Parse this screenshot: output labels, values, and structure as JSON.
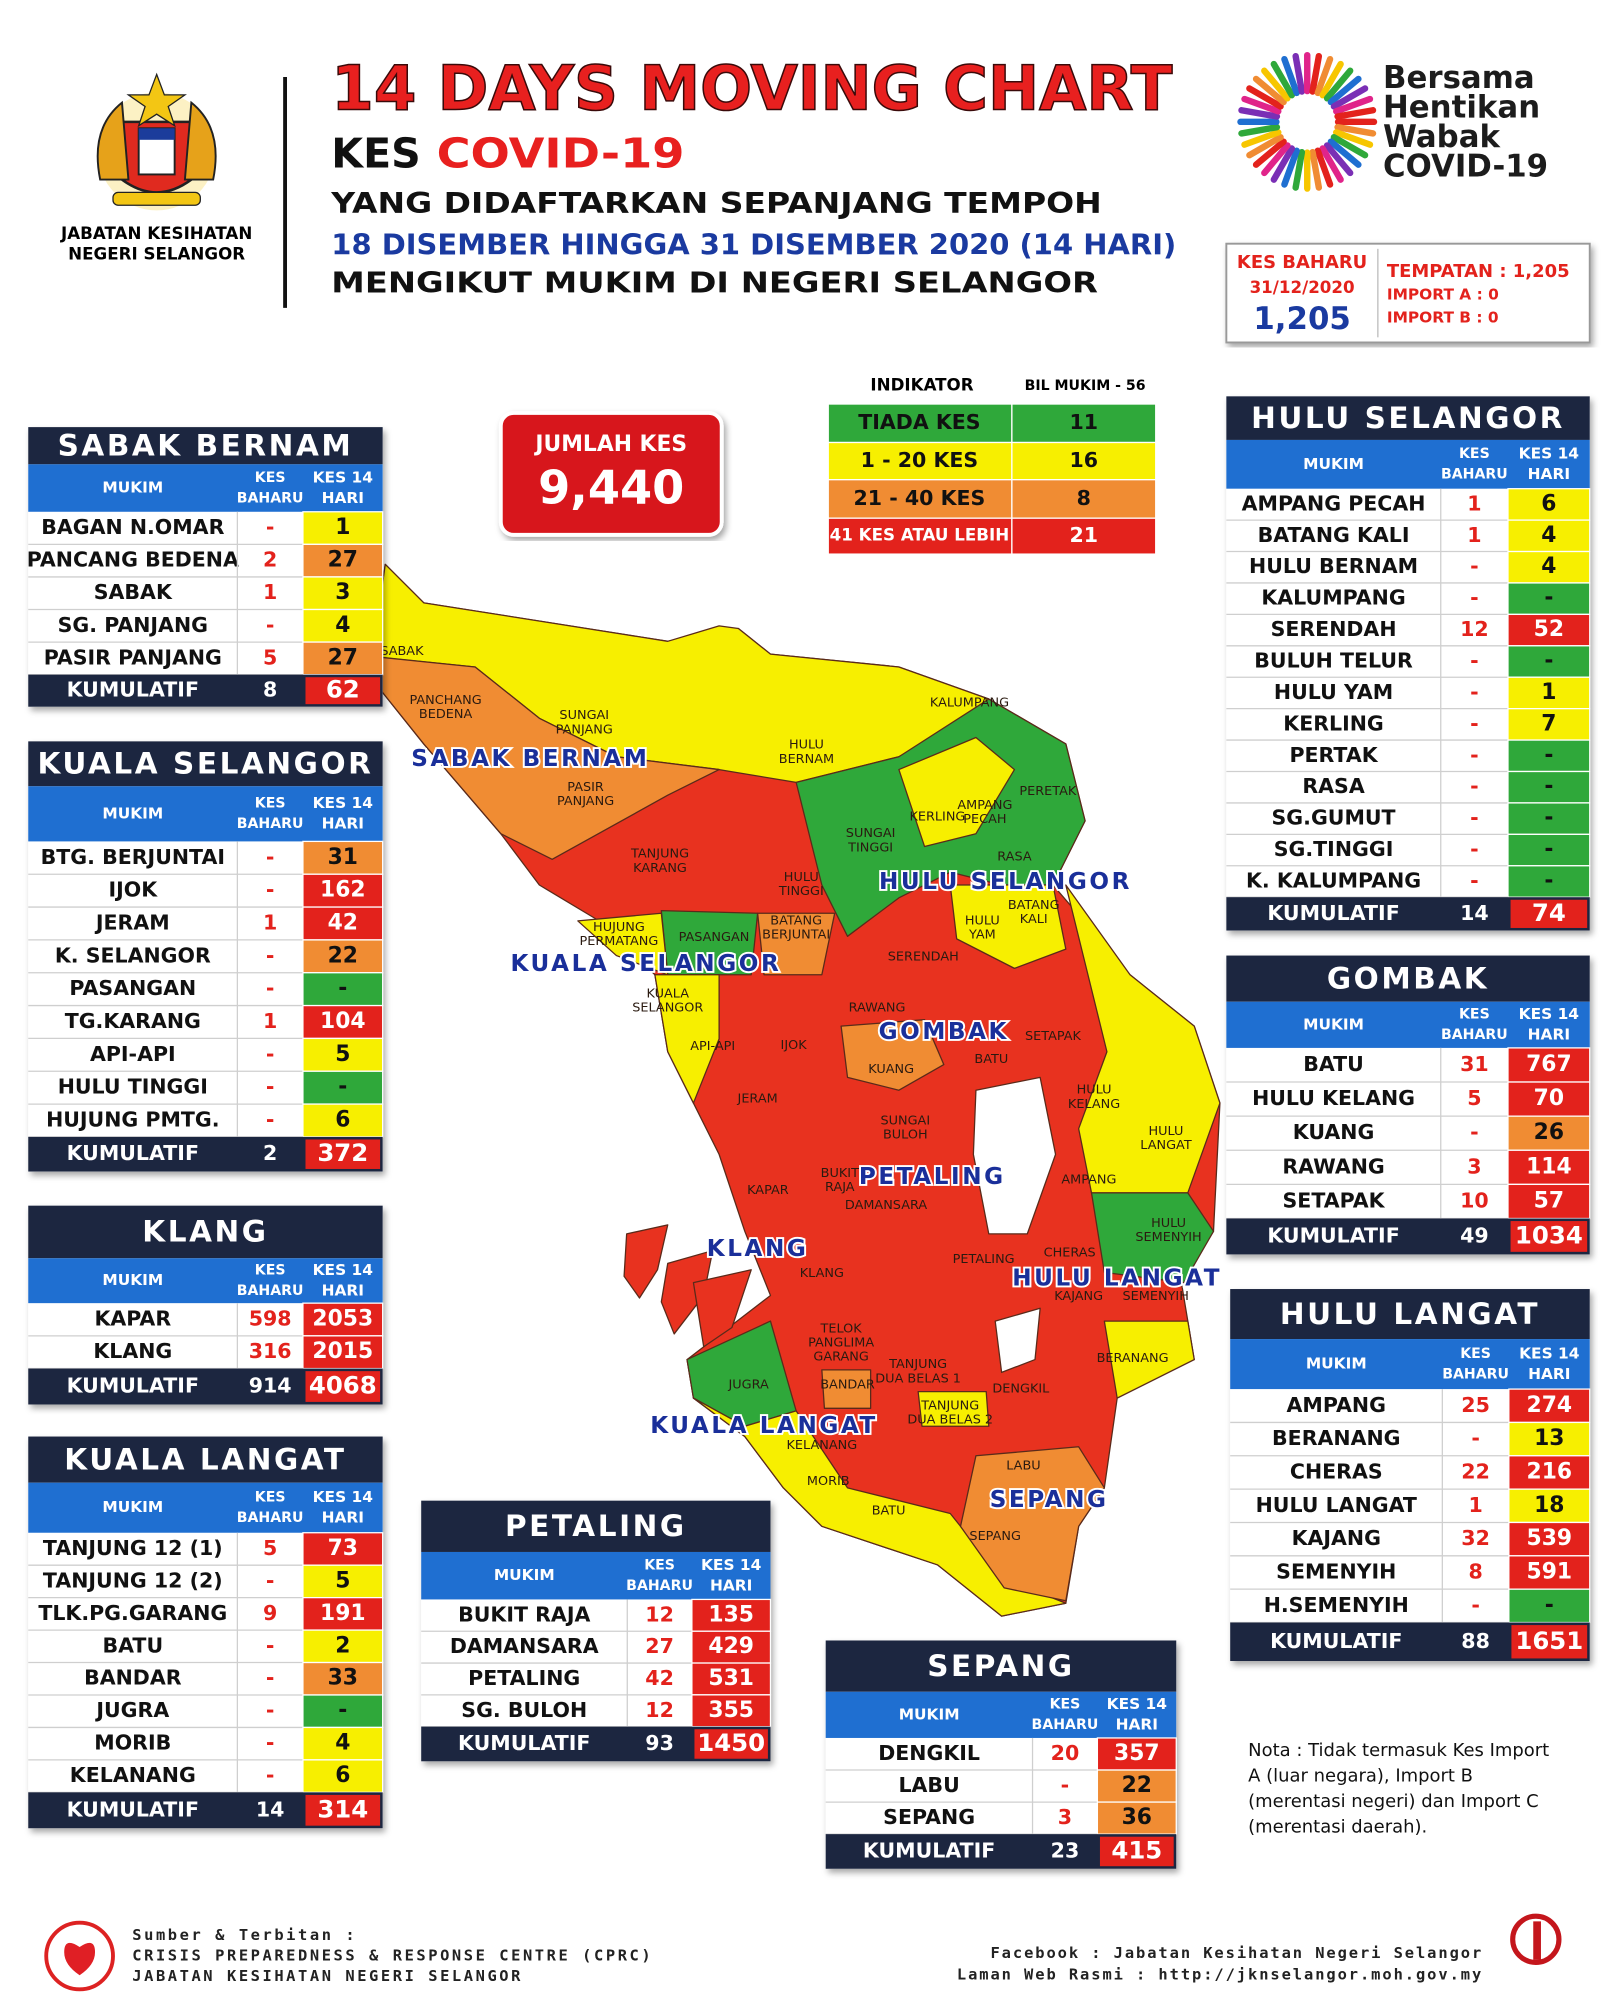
{
  "header": {
    "org": [
      "JABATAN KESIHATAN",
      "NEGERI SELANGOR"
    ],
    "title": "14 DAYS MOVING CHART",
    "subtitle_kes": "KES",
    "subtitle_covid": "COVID-19",
    "line1": "YANG DIDAFTARKAN SEPANJANG TEMPOH",
    "line2": "18 DISEMBER HINGGA 31 DISEMBER 2020 (14 HARI)",
    "line3": "MENGIKUT MUKIM DI NEGERI SELANGOR"
  },
  "campaign": [
    "Bersama",
    "Hentikan",
    "Wabak",
    "COVID-19"
  ],
  "new_cases": {
    "label": "KES BAHARU",
    "date": "31/12/2020",
    "total": "1,205",
    "breakdown": [
      "TEMPATAN : 1,205",
      "IMPORT A : 0",
      "IMPORT B : 0"
    ]
  },
  "total_cases": {
    "label": "JUMLAH KES",
    "value": "9,440"
  },
  "indicator": {
    "title": "INDIKATOR",
    "count_title": "BIL MUKIM - 56",
    "rows": [
      {
        "label": "TIADA KES",
        "count": "11",
        "color": "#2fa83a"
      },
      {
        "label": "1 - 20 KES",
        "count": "16",
        "color": "#f7ef00"
      },
      {
        "label": "21 - 40 KES",
        "count": "8",
        "color": "#f08c33"
      },
      {
        "label": "41 KES ATAU LEBIH",
        "count": "21",
        "color": "#e3221c"
      }
    ]
  },
  "tables": [
    {
      "title": "SABAK BERNAM",
      "headers": {
        "mukim": "MUKIM",
        "baharu": [
          "KES",
          "BAHARU"
        ],
        "hari": [
          "KES 14",
          "HARI"
        ]
      },
      "rows": [
        {
          "mukim": "BAGAN N.OMAR",
          "baharu": "-",
          "hari": "1",
          "color": "#f7ef00"
        },
        {
          "mukim": "PANCANG BEDENA",
          "baharu": "2",
          "hari": "27",
          "color": "#f08c33"
        },
        {
          "mukim": "SABAK",
          "baharu": "1",
          "hari": "3",
          "color": "#f7ef00"
        },
        {
          "mukim": "SG. PANJANG",
          "baharu": "-",
          "hari": "4",
          "color": "#f7ef00"
        },
        {
          "mukim": "PASIR PANJANG",
          "baharu": "5",
          "hari": "27",
          "color": "#f08c33"
        }
      ],
      "total": {
        "label": "KUMULATIF",
        "baharu": "8",
        "hari": "62"
      }
    },
    {
      "title": "KUALA SELANGOR",
      "headers": {
        "mukim": "MUKIM",
        "baharu": [
          "KES",
          "BAHARU"
        ],
        "hari": [
          "KES 14",
          "HARI"
        ]
      },
      "rows": [
        {
          "mukim": "BTG. BERJUNTAI",
          "baharu": "-",
          "hari": "31",
          "color": "#f08c33"
        },
        {
          "mukim": "IJOK",
          "baharu": "-",
          "hari": "162",
          "color": "#e3221c"
        },
        {
          "mukim": "JERAM",
          "baharu": "1",
          "hari": "42",
          "color": "#e3221c"
        },
        {
          "mukim": "K. SELANGOR",
          "baharu": "-",
          "hari": "22",
          "color": "#f08c33"
        },
        {
          "mukim": "PASANGAN",
          "baharu": "-",
          "hari": "-",
          "color": "#2fa83a"
        },
        {
          "mukim": "TG.KARANG",
          "baharu": "1",
          "hari": "104",
          "color": "#e3221c"
        },
        {
          "mukim": "API-API",
          "baharu": "-",
          "hari": "5",
          "color": "#f7ef00"
        },
        {
          "mukim": "HULU TINGGI",
          "baharu": "-",
          "hari": "-",
          "color": "#2fa83a"
        },
        {
          "mukim": "HUJUNG PMTG.",
          "baharu": "-",
          "hari": "6",
          "color": "#f7ef00"
        }
      ],
      "total": {
        "label": "KUMULATIF",
        "baharu": "2",
        "hari": "372"
      }
    },
    {
      "title": "KLANG",
      "headers": {
        "mukim": "MUKIM",
        "baharu": [
          "KES",
          "BAHARU"
        ],
        "hari": [
          "KES 14",
          "HARI"
        ]
      },
      "rows": [
        {
          "mukim": "KAPAR",
          "baharu": "598",
          "hari": "2053",
          "color": "#e3221c"
        },
        {
          "mukim": "KLANG",
          "baharu": "316",
          "hari": "2015",
          "color": "#e3221c"
        }
      ],
      "total": {
        "label": "KUMULATIF",
        "baharu": "914",
        "hari": "4068"
      }
    },
    {
      "title": "KUALA LANGAT",
      "headers": {
        "mukim": "MUKIM",
        "baharu": [
          "KES",
          "BAHARU"
        ],
        "hari": [
          "KES 14",
          "HARI"
        ]
      },
      "rows": [
        {
          "mukim": "TANJUNG 12 (1)",
          "baharu": "5",
          "hari": "73",
          "color": "#e3221c"
        },
        {
          "mukim": "TANJUNG 12 (2)",
          "baharu": "-",
          "hari": "5",
          "color": "#f7ef00"
        },
        {
          "mukim": "TLK.PG.GARANG",
          "baharu": "9",
          "hari": "191",
          "color": "#e3221c"
        },
        {
          "mukim": "BATU",
          "baharu": "-",
          "hari": "2",
          "color": "#f7ef00"
        },
        {
          "mukim": "BANDAR",
          "baharu": "-",
          "hari": "33",
          "color": "#f08c33"
        },
        {
          "mukim": "JUGRA",
          "baharu": "-",
          "hari": "-",
          "color": "#2fa83a"
        },
        {
          "mukim": "MORIB",
          "baharu": "-",
          "hari": "4",
          "color": "#f7ef00"
        },
        {
          "mukim": "KELANANG",
          "baharu": "-",
          "hari": "6",
          "color": "#f7ef00"
        }
      ],
      "total": {
        "label": "KUMULATIF",
        "baharu": "14",
        "hari": "314"
      }
    },
    {
      "title": "PETALING",
      "headers": {
        "mukim": "MUKIM",
        "baharu": [
          "KES",
          "BAHARU"
        ],
        "hari": [
          "KES 14",
          "HARI"
        ]
      },
      "rows": [
        {
          "mukim": "BUKIT RAJA",
          "baharu": "12",
          "hari": "135",
          "color": "#e3221c"
        },
        {
          "mukim": "DAMANSARA",
          "baharu": "27",
          "hari": "429",
          "color": "#e3221c"
        },
        {
          "mukim": "PETALING",
          "baharu": "42",
          "hari": "531",
          "color": "#e3221c"
        },
        {
          "mukim": "SG. BULOH",
          "baharu": "12",
          "hari": "355",
          "color": "#e3221c"
        }
      ],
      "total": {
        "label": "KUMULATIF",
        "baharu": "93",
        "hari": "1450"
      }
    },
    {
      "title": "SEPANG",
      "headers": {
        "mukim": "MUKIM",
        "baharu": [
          "KES",
          "BAHARU"
        ],
        "hari": [
          "KES 14",
          "HARI"
        ]
      },
      "rows": [
        {
          "mukim": "DENGKIL",
          "baharu": "20",
          "hari": "357",
          "color": "#e3221c"
        },
        {
          "mukim": "LABU",
          "baharu": "-",
          "hari": "22",
          "color": "#f08c33"
        },
        {
          "mukim": "SEPANG",
          "baharu": "3",
          "hari": "36",
          "color": "#f08c33"
        }
      ],
      "total": {
        "label": "KUMULATIF",
        "baharu": "23",
        "hari": "415"
      }
    },
    {
      "title": "HULU SELANGOR",
      "headers": {
        "mukim": "MUKIM",
        "baharu": [
          "KES",
          "BAHARU"
        ],
        "hari": [
          "KES 14",
          "HARI"
        ]
      },
      "rows": [
        {
          "mukim": "AMPANG PECAH",
          "baharu": "1",
          "hari": "6",
          "color": "#f7ef00"
        },
        {
          "mukim": "BATANG KALI",
          "baharu": "1",
          "hari": "4",
          "color": "#f7ef00"
        },
        {
          "mukim": "HULU BERNAM",
          "baharu": "-",
          "hari": "4",
          "color": "#f7ef00"
        },
        {
          "mukim": "KALUMPANG",
          "baharu": "-",
          "hari": "-",
          "color": "#2fa83a"
        },
        {
          "mukim": "SERENDAH",
          "baharu": "12",
          "hari": "52",
          "color": "#e3221c"
        },
        {
          "mukim": "BULUH TELUR",
          "baharu": "-",
          "hari": "-",
          "color": "#2fa83a"
        },
        {
          "mukim": "HULU YAM",
          "baharu": "-",
          "hari": "1",
          "color": "#f7ef00"
        },
        {
          "mukim": "KERLING",
          "baharu": "-",
          "hari": "7",
          "color": "#f7ef00"
        },
        {
          "mukim": "PERTAK",
          "baharu": "-",
          "hari": "-",
          "color": "#2fa83a"
        },
        {
          "mukim": "RASA",
          "baharu": "-",
          "hari": "-",
          "color": "#2fa83a"
        },
        {
          "mukim": "SG.GUMUT",
          "baharu": "-",
          "hari": "-",
          "color": "#2fa83a"
        },
        {
          "mukim": "SG.TINGGI",
          "baharu": "-",
          "hari": "-",
          "color": "#2fa83a"
        },
        {
          "mukim": "K. KALUMPANG",
          "baharu": "-",
          "hari": "-",
          "color": "#2fa83a"
        }
      ],
      "total": {
        "label": "KUMULATIF",
        "baharu": "14",
        "hari": "74"
      }
    },
    {
      "title": "GOMBAK",
      "headers": {
        "mukim": "MUKIM",
        "baharu": [
          "KES",
          "BAHARU"
        ],
        "hari": [
          "KES 14",
          "HARI"
        ]
      },
      "rows": [
        {
          "mukim": "BATU",
          "baharu": "31",
          "hari": "767",
          "color": "#e3221c"
        },
        {
          "mukim": "HULU KELANG",
          "baharu": "5",
          "hari": "70",
          "color": "#e3221c"
        },
        {
          "mukim": "KUANG",
          "baharu": "-",
          "hari": "26",
          "color": "#f08c33"
        },
        {
          "mukim": "RAWANG",
          "baharu": "3",
          "hari": "114",
          "color": "#e3221c"
        },
        {
          "mukim": "SETAPAK",
          "baharu": "10",
          "hari": "57",
          "color": "#e3221c"
        }
      ],
      "total": {
        "label": "KUMULATIF",
        "baharu": "49",
        "hari": "1034"
      }
    },
    {
      "title": "HULU LANGAT",
      "headers": {
        "mukim": "MUKIM",
        "baharu": [
          "KES",
          "BAHARU"
        ],
        "hari": [
          "KES 14",
          "HARI"
        ]
      },
      "rows": [
        {
          "mukim": "AMPANG",
          "baharu": "25",
          "hari": "274",
          "color": "#e3221c"
        },
        {
          "mukim": "BERANANG",
          "baharu": "-",
          "hari": "13",
          "color": "#f7ef00"
        },
        {
          "mukim": "CHERAS",
          "baharu": "22",
          "hari": "216",
          "color": "#e3221c"
        },
        {
          "mukim": "HULU LANGAT",
          "baharu": "1",
          "hari": "18",
          "color": "#f7ef00"
        },
        {
          "mukim": "KAJANG",
          "baharu": "32",
          "hari": "539",
          "color": "#e3221c"
        },
        {
          "mukim": "SEMENYIH",
          "baharu": "8",
          "hari": "591",
          "color": "#e3221c"
        },
        {
          "mukim": "H.SEMENYIH",
          "baharu": "-",
          "hari": "-",
          "color": "#2fa83a"
        }
      ],
      "total": {
        "label": "KUMULATIF",
        "baharu": "88",
        "hari": "1651"
      }
    }
  ],
  "map": {
    "districts": [
      "SABAK BERNAM",
      "KUALA SELANGOR",
      "HULU SELANGOR",
      "GOMBAK",
      "PETALING",
      "KLANG",
      "HULU LANGAT",
      "KUALA LANGAT",
      "SEPANG"
    ],
    "mukim": [
      [
        "SABAK"
      ],
      [
        "PANCHANG",
        "BEDENA"
      ],
      [
        "SUNGAI",
        "PANJANG"
      ],
      [
        "PASIR",
        "PANJANG"
      ],
      [
        "TANJUNG",
        "KARANG"
      ],
      [
        "HULU",
        "BERNAM"
      ],
      [
        "KALUMPANG"
      ],
      [
        "PERETAK"
      ],
      [
        "KERLING"
      ],
      [
        "AMPANG",
        "PECAH"
      ],
      [
        "SUNGAI",
        "TINGGI"
      ],
      [
        "RASA"
      ],
      [
        "HULU",
        "TINGGI"
      ],
      [
        "BATANG",
        "KALI"
      ],
      [
        "HULU",
        "YAM"
      ],
      [
        "HUJUNG",
        "PERMATANG"
      ],
      [
        "PASANGAN"
      ],
      [
        "BATANG",
        "BERJUNTAI"
      ],
      [
        "SERENDAH"
      ],
      [
        "KUALA",
        "SELANGOR"
      ],
      [
        "RAWANG"
      ],
      [
        "API-API"
      ],
      [
        "IJOK"
      ],
      [
        "KUANG"
      ],
      [
        "BATU"
      ],
      [
        "SETAPAK"
      ],
      [
        "HULU",
        "KELANG"
      ],
      [
        "JERAM"
      ],
      [
        "SUNGAI",
        "BULOH"
      ],
      [
        "HULU",
        "LANGAT"
      ],
      [
        "BUKIT",
        "RAJA"
      ],
      [
        "AMPANG"
      ],
      [
        "KAPAR"
      ],
      [
        "DAMANSARA"
      ],
      [
        "HULU",
        "SEMENYIH"
      ],
      [
        "CHERAS"
      ],
      [
        "PETALING"
      ],
      [
        "KLANG"
      ],
      [
        "KAJANG"
      ],
      [
        "SEMENYIH"
      ],
      [
        "TELOK",
        "PANGLIMA",
        "GARANG"
      ],
      [
        "TANJUNG",
        "DUA BELAS 1"
      ],
      [
        "BERANANG"
      ],
      [
        "DENGKIL"
      ],
      [
        "JUGRA"
      ],
      [
        "BANDAR"
      ],
      [
        "TANJUNG",
        "DUA BELAS 2"
      ],
      [
        "KELANANG"
      ],
      [
        "LABU"
      ],
      [
        "MORIB"
      ],
      [
        "BATU"
      ],
      [
        "SEPANG"
      ]
    ]
  },
  "note": [
    "Nota : Tidak termasuk Kes Import",
    "A (luar negara), Import B",
    "(merentasi negeri) dan Import C",
    "(merentasi daerah)."
  ],
  "footer": {
    "source": [
      "Sumber & Terbitan :",
      "CRISIS PREPAREDNESS & RESPONSE CENTRE (CPRC)",
      "JABATAN KESIHATAN NEGERI SELANGOR"
    ],
    "links": [
      "Facebook : Jabatan Kesihatan Negeri Selangor",
      "Laman Web Rasmi : http://jknselangor.moh.gov.my"
    ]
  }
}
